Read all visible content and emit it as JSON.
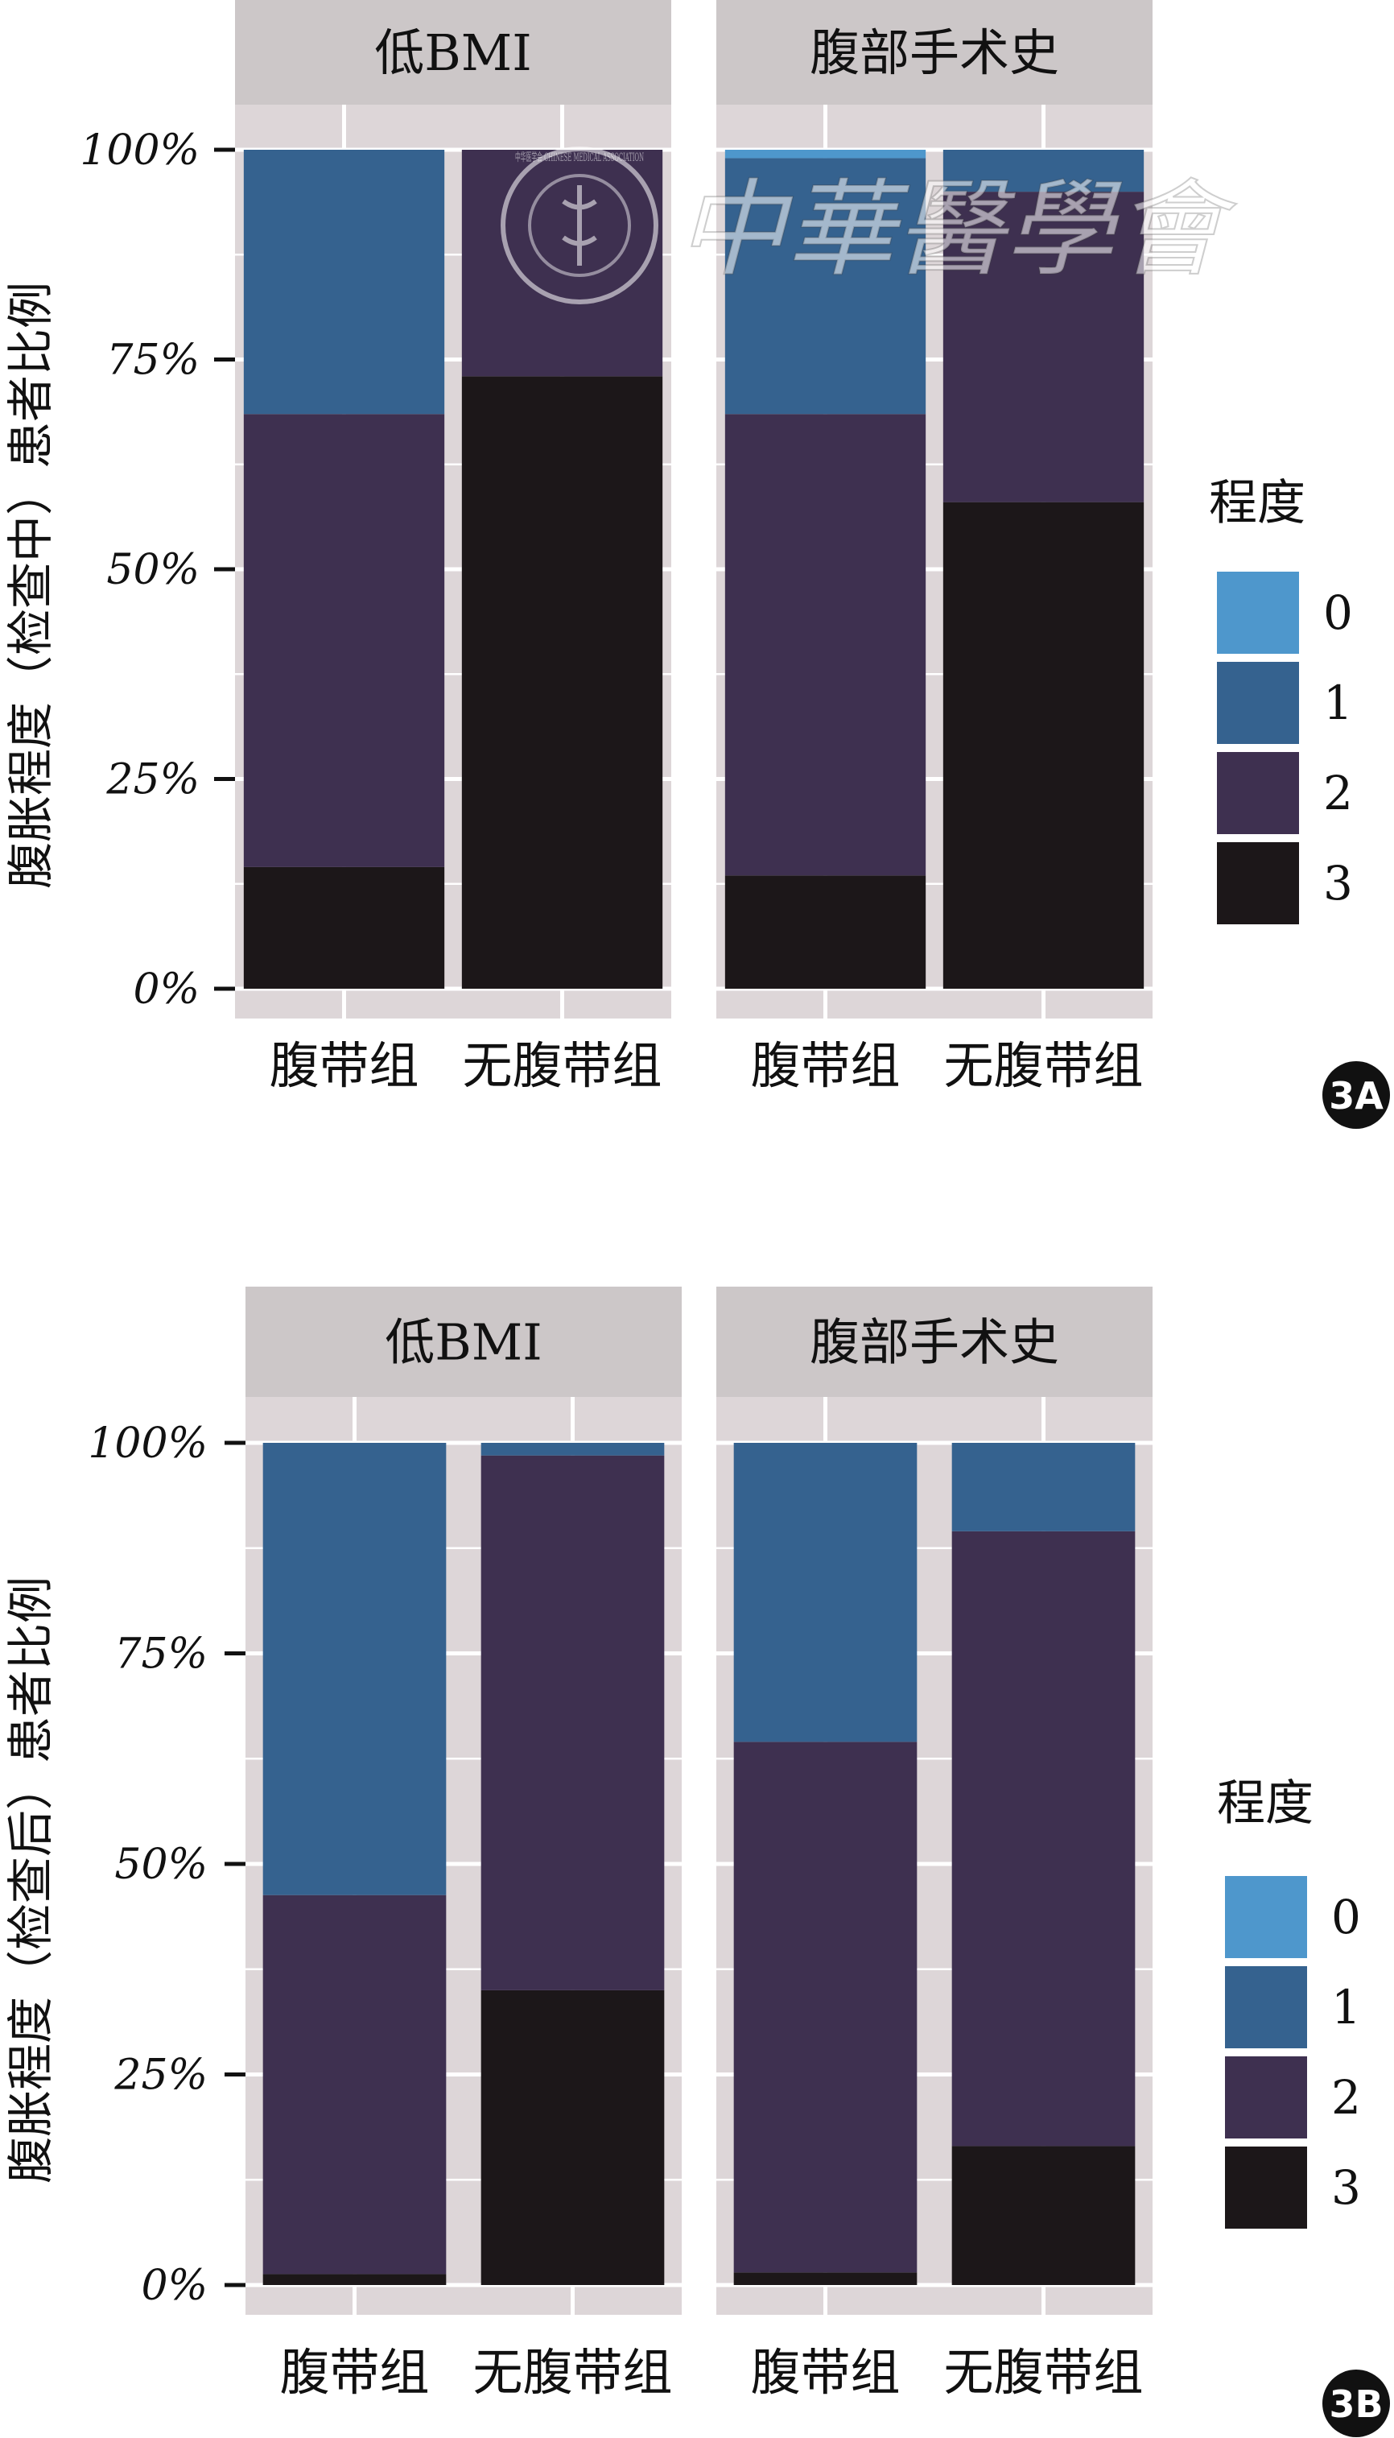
{
  "legend": {
    "title": "程度",
    "items": [
      {
        "label": "0",
        "color": "#4E97CC"
      },
      {
        "label": "1",
        "color": "#35628F"
      },
      {
        "label": "2",
        "color": "#3E3050"
      },
      {
        "label": "3",
        "color": "#1C1719"
      }
    ]
  },
  "watermark": {
    "text": "中華醫學會",
    "seal_text": "中华医学会 CHINESE MEDICAL ASSOCIATION"
  },
  "chart_data": [
    {
      "type": "bar",
      "stacked": true,
      "badge": "3A",
      "ylabel": "腹胀程度（检查中）患者比例",
      "ylim": [
        0,
        100
      ],
      "yticks": [
        "0%",
        "25%",
        "50%",
        "75%",
        "100%"
      ],
      "ytick_values": [
        0,
        25,
        50,
        75,
        100
      ],
      "legend_position": "right",
      "panels": [
        {
          "facet": "低BMI",
          "categories": [
            "腹带组",
            "无腹带组"
          ],
          "series": [
            {
              "name": "0",
              "values": [
                0,
                0
              ]
            },
            {
              "name": "1",
              "values": [
                31.5,
                0
              ]
            },
            {
              "name": "2",
              "values": [
                54,
                27
              ]
            },
            {
              "name": "3",
              "values": [
                14.5,
                73
              ]
            }
          ]
        },
        {
          "facet": "腹部手术史",
          "categories": [
            "腹带组",
            "无腹带组"
          ],
          "series": [
            {
              "name": "0",
              "values": [
                1,
                0
              ]
            },
            {
              "name": "1",
              "values": [
                30.5,
                5
              ]
            },
            {
              "name": "2",
              "values": [
                55,
                37
              ]
            },
            {
              "name": "3",
              "values": [
                13.5,
                58
              ]
            }
          ]
        }
      ]
    },
    {
      "type": "bar",
      "stacked": true,
      "badge": "3B",
      "ylabel": "腹胀程度（检查后）患者比例",
      "ylim": [
        0,
        100
      ],
      "yticks": [
        "0%",
        "25%",
        "50%",
        "75%",
        "100%"
      ],
      "ytick_values": [
        0,
        25,
        50,
        75,
        100
      ],
      "legend_position": "right",
      "panels": [
        {
          "facet": "低BMI",
          "categories": [
            "腹带组",
            "无腹带组"
          ],
          "series": [
            {
              "name": "0",
              "values": [
                0,
                0
              ]
            },
            {
              "name": "1",
              "values": [
                53.7,
                1.5
              ]
            },
            {
              "name": "2",
              "values": [
                45,
                63.5
              ]
            },
            {
              "name": "3",
              "values": [
                1.3,
                35
              ]
            }
          ]
        },
        {
          "facet": "腹部手术史",
          "categories": [
            "腹带组",
            "无腹带组"
          ],
          "series": [
            {
              "name": "0",
              "values": [
                0,
                0
              ]
            },
            {
              "name": "1",
              "values": [
                35.5,
                10.5
              ]
            },
            {
              "name": "2",
              "values": [
                63,
                73
              ]
            },
            {
              "name": "3",
              "values": [
                1.5,
                16.5
              ]
            }
          ]
        }
      ]
    }
  ]
}
